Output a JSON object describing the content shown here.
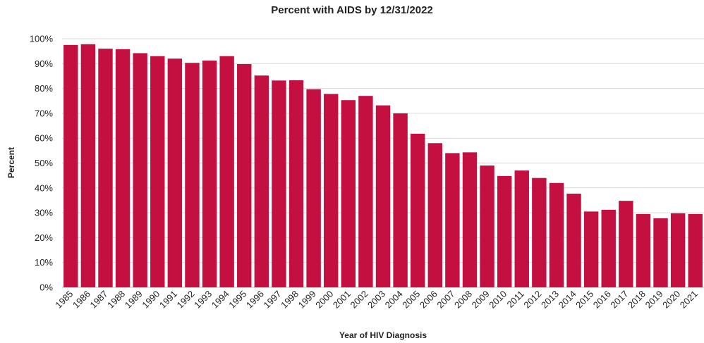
{
  "chart_data": {
    "type": "bar",
    "title": "Percent with AIDS by 12/31/2022",
    "xlabel": "Year of HIV Diagnosis",
    "ylabel": "Percent",
    "ylim": [
      0,
      100
    ],
    "yticks": [
      "0%",
      "10%",
      "20%",
      "30%",
      "40%",
      "50%",
      "60%",
      "70%",
      "80%",
      "90%",
      "100%"
    ],
    "grid": true,
    "bar_color": "#C41040",
    "categories": [
      "1985",
      "1986",
      "1987",
      "1988",
      "1989",
      "1990",
      "1991",
      "1992",
      "1993",
      "1994",
      "1995",
      "1996",
      "1997",
      "1998",
      "1999",
      "2000",
      "2001",
      "2002",
      "2003",
      "2004",
      "2005",
      "2006",
      "2007",
      "2008",
      "2009",
      "2010",
      "2011",
      "2012",
      "2013",
      "2014",
      "2015",
      "2016",
      "2017",
      "2018",
      "2019",
      "2020",
      "2021"
    ],
    "values": [
      97.5,
      97.8,
      96,
      95.8,
      94.2,
      93,
      92,
      90.3,
      91.2,
      93,
      89.8,
      85.2,
      83.2,
      83.3,
      79.7,
      77.8,
      75.3,
      77,
      73.2,
      70,
      61.8,
      58,
      54,
      54.3,
      49,
      44.8,
      47,
      44,
      42,
      37.7,
      30.5,
      31.2,
      34.8,
      29.5,
      27.8,
      29.8,
      29.5
    ]
  }
}
